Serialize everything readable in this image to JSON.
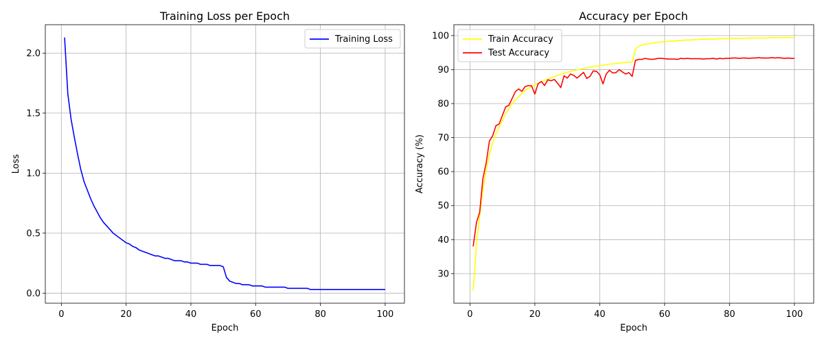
{
  "chart_data": [
    {
      "type": "line",
      "title": "Training Loss per Epoch",
      "xlabel": "Epoch",
      "ylabel": "Loss",
      "xlim": [
        -4.95,
        105.95
      ],
      "ylim": [
        -0.0839,
        2.2366
      ],
      "xticks": [
        0,
        20,
        40,
        60,
        80,
        100
      ],
      "yticks": [
        0.0,
        0.5,
        1.0,
        1.5,
        2.0
      ],
      "xtick_labels": [
        "0",
        "20",
        "40",
        "60",
        "80",
        "100"
      ],
      "ytick_labels": [
        "0.0",
        "0.5",
        "1.0",
        "1.5",
        "2.0"
      ],
      "grid": true,
      "legend_position": "upper right",
      "x_start": 1,
      "series": [
        {
          "name": "Training Loss",
          "color": "#0000ff",
          "values": [
            2.13,
            1.66,
            1.45,
            1.3,
            1.16,
            1.03,
            0.93,
            0.86,
            0.79,
            0.73,
            0.68,
            0.63,
            0.59,
            0.56,
            0.53,
            0.5,
            0.48,
            0.46,
            0.44,
            0.42,
            0.41,
            0.39,
            0.38,
            0.36,
            0.35,
            0.34,
            0.33,
            0.32,
            0.31,
            0.31,
            0.3,
            0.29,
            0.29,
            0.28,
            0.27,
            0.27,
            0.27,
            0.26,
            0.26,
            0.25,
            0.25,
            0.25,
            0.24,
            0.24,
            0.24,
            0.23,
            0.23,
            0.23,
            0.23,
            0.22,
            0.13,
            0.1,
            0.09,
            0.08,
            0.08,
            0.07,
            0.07,
            0.07,
            0.06,
            0.06,
            0.06,
            0.06,
            0.05,
            0.05,
            0.05,
            0.05,
            0.05,
            0.05,
            0.05,
            0.04,
            0.04,
            0.04,
            0.04,
            0.04,
            0.04,
            0.04,
            0.03,
            0.03,
            0.03,
            0.03,
            0.03,
            0.03,
            0.03,
            0.03,
            0.03,
            0.03,
            0.03,
            0.03,
            0.03,
            0.03,
            0.03,
            0.03,
            0.03,
            0.03,
            0.03,
            0.03,
            0.03,
            0.03,
            0.03,
            0.03
          ]
        }
      ]
    },
    {
      "type": "line",
      "title": "Accuracy per Epoch",
      "xlabel": "Epoch",
      "ylabel": "Accuracy (%)",
      "xlim": [
        -4.95,
        105.95
      ],
      "ylim": [
        21.3,
        103.2
      ],
      "xticks": [
        0,
        20,
        40,
        60,
        80,
        100
      ],
      "yticks": [
        30,
        40,
        50,
        60,
        70,
        80,
        90,
        100
      ],
      "xtick_labels": [
        "0",
        "20",
        "40",
        "60",
        "80",
        "100"
      ],
      "ytick_labels": [
        "30",
        "40",
        "50",
        "60",
        "70",
        "80",
        "90",
        "100"
      ],
      "grid": true,
      "legend_position": "upper left",
      "x_start": 1,
      "series": [
        {
          "name": "Train Accuracy",
          "color": "#ffff00",
          "values": [
            25.0,
            38.5,
            47.0,
            55.0,
            60.5,
            65.0,
            68.5,
            71.0,
            73.0,
            75.0,
            77.0,
            78.5,
            80.0,
            81.0,
            82.0,
            83.0,
            83.8,
            84.5,
            85.0,
            85.5,
            86.0,
            86.4,
            86.8,
            87.2,
            87.6,
            88.0,
            88.3,
            88.6,
            88.9,
            89.2,
            89.4,
            89.7,
            89.9,
            90.1,
            90.3,
            90.5,
            90.7,
            90.9,
            91.0,
            91.2,
            91.3,
            91.4,
            91.6,
            91.7,
            91.8,
            91.9,
            92.0,
            92.1,
            92.2,
            92.3,
            96.0,
            96.8,
            97.2,
            97.5,
            97.6,
            97.8,
            97.9,
            98.0,
            98.1,
            98.2,
            98.3,
            98.4,
            98.4,
            98.5,
            98.6,
            98.6,
            98.7,
            98.7,
            98.8,
            98.8,
            98.9,
            98.9,
            98.9,
            99.0,
            99.0,
            99.0,
            99.1,
            99.1,
            99.1,
            99.1,
            99.2,
            99.2,
            99.2,
            99.2,
            99.2,
            99.3,
            99.3,
            99.3,
            99.3,
            99.3,
            99.3,
            99.3,
            99.4,
            99.4,
            99.4,
            99.4,
            99.4,
            99.4,
            99.4,
            99.4
          ]
        },
        {
          "name": "Test Accuracy",
          "color": "#ff0000",
          "values": [
            38.0,
            45.0,
            48.0,
            58.0,
            62.5,
            69.0,
            70.5,
            73.5,
            74.0,
            76.5,
            79.0,
            79.5,
            81.5,
            83.5,
            84.3,
            83.6,
            85.0,
            85.3,
            85.2,
            82.8,
            85.8,
            86.5,
            85.3,
            87.0,
            86.7,
            87.1,
            86.0,
            84.7,
            88.2,
            87.5,
            88.7,
            88.3,
            87.5,
            88.3,
            89.2,
            87.4,
            88.0,
            89.6,
            89.5,
            88.5,
            85.8,
            88.7,
            89.8,
            89.0,
            89.1,
            90.0,
            89.3,
            88.7,
            89.1,
            88.0,
            92.7,
            93.0,
            93.0,
            93.3,
            93.1,
            93.0,
            93.1,
            93.3,
            93.3,
            93.2,
            93.1,
            93.1,
            93.1,
            93.0,
            93.3,
            93.2,
            93.3,
            93.2,
            93.2,
            93.2,
            93.2,
            93.1,
            93.2,
            93.2,
            93.3,
            93.1,
            93.3,
            93.2,
            93.3,
            93.3,
            93.4,
            93.4,
            93.3,
            93.4,
            93.4,
            93.3,
            93.4,
            93.4,
            93.5,
            93.4,
            93.4,
            93.4,
            93.5,
            93.4,
            93.5,
            93.4,
            93.3,
            93.4,
            93.3,
            93.3
          ]
        }
      ]
    }
  ]
}
